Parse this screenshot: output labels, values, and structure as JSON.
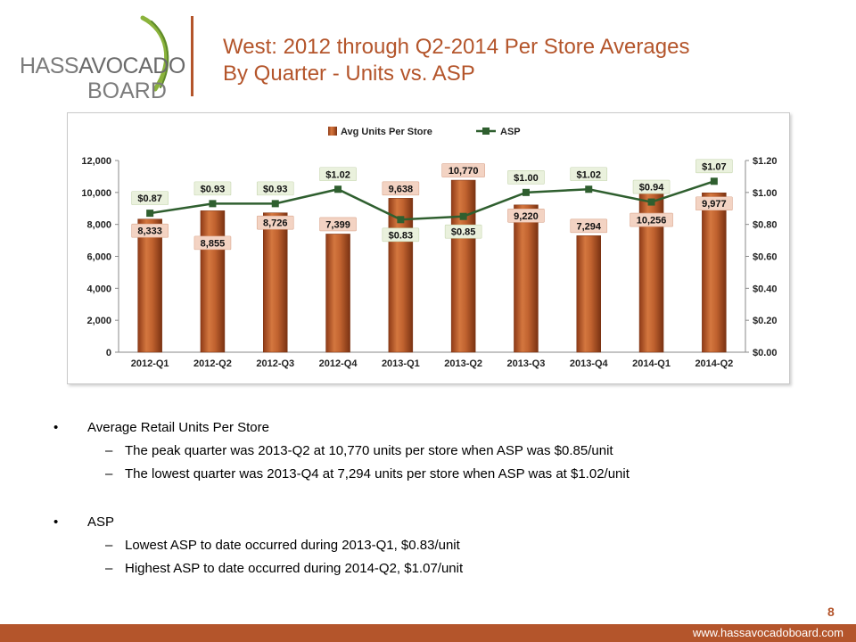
{
  "logo": {
    "line1a": "HASS",
    "line1b": "AVOCADO",
    "line2": "BOARD"
  },
  "title": {
    "line1": "West: 2012 through Q2-2014 Per Store Averages",
    "line2": "By Quarter - Units vs. ASP"
  },
  "chart_data": {
    "type": "bar",
    "categories": [
      "2012-Q1",
      "2012-Q2",
      "2012-Q3",
      "2012-Q4",
      "2013-Q1",
      "2013-Q2",
      "2013-Q3",
      "2013-Q4",
      "2014-Q1",
      "2014-Q2"
    ],
    "series": [
      {
        "name": "Avg Units Per Store",
        "type": "bar",
        "axis": "left",
        "values": [
          8333,
          8855,
          8726,
          7399,
          9638,
          10770,
          9220,
          7294,
          10256,
          9977
        ],
        "labels": [
          "8,333",
          "8,855",
          "8,726",
          "7,399",
          "9,638",
          "10,770",
          "9,220",
          "7,294",
          "10,256",
          "9,977"
        ],
        "color": "#b85a2b"
      },
      {
        "name": "ASP",
        "type": "line",
        "axis": "right",
        "values": [
          0.87,
          0.93,
          0.93,
          1.02,
          0.83,
          0.85,
          1.0,
          1.02,
          0.94,
          1.07
        ],
        "labels": [
          "$0.87",
          "$0.93",
          "$0.93",
          "$1.02",
          "$0.83",
          "$0.85",
          "$1.00",
          "$1.02",
          "$0.94",
          "$1.07"
        ],
        "color": "#2f5f2f"
      }
    ],
    "ylim_left": [
      0,
      12000
    ],
    "yticks_left": [
      "0",
      "2,000",
      "4,000",
      "6,000",
      "8,000",
      "10,000",
      "12,000"
    ],
    "ylim_right": [
      0,
      1.2
    ],
    "yticks_right": [
      "$0.00",
      "$0.20",
      "$0.40",
      "$0.60",
      "$0.80",
      "$1.00",
      "$1.20"
    ],
    "legend_position": "top-center",
    "grid": false
  },
  "bullets": [
    {
      "text": "Average Retail Units Per Store",
      "subs": [
        "The peak quarter was 2013-Q2 at 10,770 units per store when ASP was $0.85/unit",
        "The lowest quarter was 2013-Q4 at 7,294 units per store when ASP was at $1.02/unit"
      ]
    },
    {
      "text": "ASP",
      "subs": [
        "Lowest ASP to date occurred during 2013-Q1, $0.83/unit",
        "Highest ASP to date occurred during 2014-Q2, $1.07/unit"
      ]
    }
  ],
  "page_number": "8",
  "footer_url": "www.hassavocadoboard.com",
  "colors": {
    "accent": "#b4552b",
    "bar": "#b85a2b",
    "line": "#2f5f2f"
  }
}
